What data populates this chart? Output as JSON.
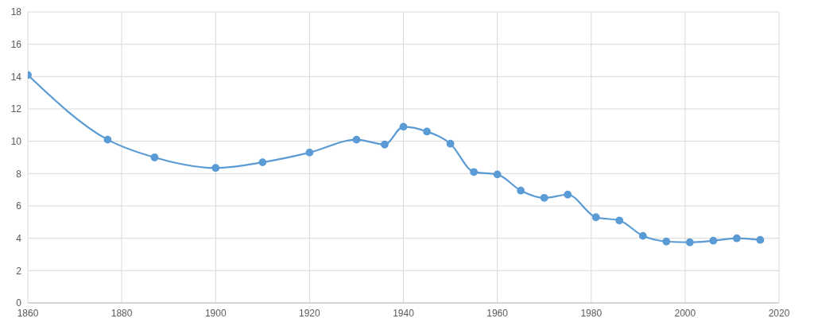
{
  "chart_data": {
    "type": "line",
    "x": [
      1860,
      1877,
      1887,
      1900,
      1910,
      1920,
      1930,
      1936,
      1940,
      1945,
      1950,
      1955,
      1960,
      1965,
      1970,
      1975,
      1981,
      1986,
      1991,
      1996,
      2001,
      2006,
      2011,
      2016
    ],
    "series": [
      {
        "color": "#5b9bd5",
        "values": [
          14.1,
          10.1,
          9.0,
          8.35,
          8.7,
          9.3,
          10.1,
          9.8,
          10.9,
          10.6,
          9.85,
          8.1,
          7.95,
          6.95,
          6.5,
          6.7,
          5.3,
          5.1,
          4.15,
          3.8,
          3.75,
          3.85,
          4.0,
          3.9
        ]
      }
    ],
    "xlim": [
      1860,
      2020
    ],
    "xticks": [
      1860,
      1880,
      1900,
      1920,
      1940,
      1960,
      1980,
      2000,
      2020
    ],
    "ylim": [
      0,
      18
    ],
    "yticks": [
      0,
      2,
      4,
      6,
      8,
      10,
      12,
      14,
      16,
      18
    ],
    "grid": true,
    "marker": "circle",
    "line_style": "solid"
  }
}
